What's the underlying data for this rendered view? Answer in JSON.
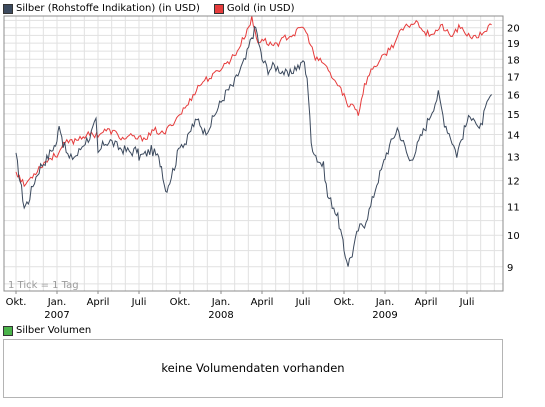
{
  "chart_data": {
    "type": "line",
    "x_ticks": [
      "Okt.",
      "Jan.",
      "April",
      "Juli",
      "Okt.",
      "Jan.",
      "April",
      "Juli",
      "Okt.",
      "Jan.",
      "April",
      "Juli"
    ],
    "year_labels": [
      {
        "label": "2007",
        "tick": 1
      },
      {
        "label": "2008",
        "tick": 5
      },
      {
        "label": "2009",
        "tick": 9
      }
    ],
    "y_ticks": [
      9,
      10,
      11,
      12,
      13,
      14,
      15,
      16,
      17,
      18,
      19,
      20
    ],
    "y_scale": "log",
    "ylim": [
      8.3,
      20.8
    ],
    "grid": true,
    "note": "1 Tick = 1 Tag",
    "series": [
      {
        "name": "Silber (Rohstoffe Indikation) (in USD)",
        "color": "#3c4a5e",
        "points": [
          [
            0,
            13.0
          ],
          [
            0.1,
            12.0
          ],
          [
            0.2,
            11.0
          ],
          [
            0.3,
            11.2
          ],
          [
            0.45,
            12.0
          ],
          [
            0.6,
            12.6
          ],
          [
            0.75,
            12.9
          ],
          [
            0.9,
            13.4
          ],
          [
            1.0,
            13.6
          ],
          [
            1.05,
            14.6
          ],
          [
            1.15,
            13.6
          ],
          [
            1.3,
            12.9
          ],
          [
            1.5,
            13.1
          ],
          [
            1.65,
            13.6
          ],
          [
            1.8,
            13.9
          ],
          [
            1.95,
            14.6
          ],
          [
            2.0,
            13.1
          ],
          [
            2.15,
            13.6
          ],
          [
            2.3,
            13.7
          ],
          [
            2.5,
            13.4
          ],
          [
            2.65,
            13.3
          ],
          [
            2.8,
            13.2
          ],
          [
            2.95,
            13.3
          ],
          [
            3.0,
            13.0
          ],
          [
            3.15,
            13.1
          ],
          [
            3.3,
            13.3
          ],
          [
            3.45,
            13.0
          ],
          [
            3.55,
            12.6
          ],
          [
            3.65,
            11.6
          ],
          [
            3.75,
            12.0
          ],
          [
            3.9,
            12.8
          ],
          [
            4.0,
            13.6
          ],
          [
            4.15,
            13.6
          ],
          [
            4.3,
            14.4
          ],
          [
            4.45,
            14.7
          ],
          [
            4.6,
            14.1
          ],
          [
            4.75,
            14.5
          ],
          [
            4.9,
            15.2
          ],
          [
            5.0,
            15.6
          ],
          [
            5.15,
            16.2
          ],
          [
            5.3,
            16.5
          ],
          [
            5.45,
            17.3
          ],
          [
            5.6,
            18.0
          ],
          [
            5.75,
            19.4
          ],
          [
            5.85,
            20.0
          ],
          [
            5.95,
            18.6
          ],
          [
            6.0,
            18.0
          ],
          [
            6.15,
            17.4
          ],
          [
            6.3,
            17.6
          ],
          [
            6.5,
            17.3
          ],
          [
            6.65,
            17.0
          ],
          [
            6.8,
            17.5
          ],
          [
            6.95,
            17.6
          ],
          [
            7.0,
            18.0
          ],
          [
            7.1,
            17.0
          ],
          [
            7.2,
            13.6
          ],
          [
            7.35,
            12.9
          ],
          [
            7.5,
            12.6
          ],
          [
            7.6,
            11.4
          ],
          [
            7.75,
            11.0
          ],
          [
            7.85,
            10.6
          ],
          [
            7.95,
            9.9
          ],
          [
            8.0,
            9.5
          ],
          [
            8.1,
            9.1
          ],
          [
            8.2,
            9.4
          ],
          [
            8.35,
            10.2
          ],
          [
            8.5,
            10.4
          ],
          [
            8.65,
            11.0
          ],
          [
            8.8,
            11.9
          ],
          [
            8.95,
            12.6
          ],
          [
            9.0,
            13.0
          ],
          [
            9.15,
            13.6
          ],
          [
            9.3,
            14.3
          ],
          [
            9.45,
            13.6
          ],
          [
            9.6,
            12.8
          ],
          [
            9.75,
            13.3
          ],
          [
            9.9,
            14.0
          ],
          [
            10.0,
            14.4
          ],
          [
            10.15,
            15.2
          ],
          [
            10.3,
            16.0
          ],
          [
            10.45,
            14.6
          ],
          [
            10.6,
            13.9
          ],
          [
            10.75,
            13.1
          ],
          [
            10.9,
            14.0
          ],
          [
            11.0,
            14.6
          ],
          [
            11.15,
            15.0
          ],
          [
            11.3,
            14.1
          ],
          [
            11.45,
            15.2
          ],
          [
            11.6,
            16.0
          ]
        ]
      },
      {
        "name": "Gold (in USD)",
        "color": "#e63c3c",
        "points": [
          [
            0,
            12.4
          ],
          [
            0.2,
            11.8
          ],
          [
            0.4,
            12.2
          ],
          [
            0.6,
            12.6
          ],
          [
            0.8,
            12.9
          ],
          [
            1.0,
            13.1
          ],
          [
            1.2,
            13.6
          ],
          [
            1.4,
            13.7
          ],
          [
            1.6,
            13.9
          ],
          [
            1.8,
            14.0
          ],
          [
            2.0,
            14.0
          ],
          [
            2.2,
            14.2
          ],
          [
            2.4,
            14.1
          ],
          [
            2.6,
            13.8
          ],
          [
            2.8,
            13.9
          ],
          [
            3.0,
            13.8
          ],
          [
            3.2,
            13.9
          ],
          [
            3.4,
            14.2
          ],
          [
            3.6,
            14.0
          ],
          [
            3.8,
            14.5
          ],
          [
            4.0,
            15.0
          ],
          [
            4.2,
            15.5
          ],
          [
            4.4,
            16.3
          ],
          [
            4.6,
            16.8
          ],
          [
            4.8,
            17.0
          ],
          [
            5.0,
            17.5
          ],
          [
            5.2,
            17.9
          ],
          [
            5.4,
            18.5
          ],
          [
            5.6,
            19.6
          ],
          [
            5.75,
            20.6
          ],
          [
            5.9,
            19.0
          ],
          [
            6.0,
            19.3
          ],
          [
            6.2,
            18.9
          ],
          [
            6.4,
            19.0
          ],
          [
            6.6,
            19.4
          ],
          [
            6.8,
            19.6
          ],
          [
            7.0,
            20.1
          ],
          [
            7.15,
            19.2
          ],
          [
            7.3,
            18.0
          ],
          [
            7.5,
            17.8
          ],
          [
            7.7,
            17.0
          ],
          [
            7.85,
            16.5
          ],
          [
            8.0,
            16.0
          ],
          [
            8.1,
            15.3
          ],
          [
            8.2,
            15.6
          ],
          [
            8.35,
            15.0
          ],
          [
            8.5,
            16.5
          ],
          [
            8.7,
            17.5
          ],
          [
            8.85,
            17.8
          ],
          [
            9.0,
            18.3
          ],
          [
            9.2,
            18.9
          ],
          [
            9.4,
            19.8
          ],
          [
            9.6,
            20.2
          ],
          [
            9.8,
            20.4
          ],
          [
            10.0,
            19.6
          ],
          [
            10.2,
            19.7
          ],
          [
            10.4,
            20.1
          ],
          [
            10.6,
            19.4
          ],
          [
            10.8,
            20.0
          ],
          [
            11.0,
            19.6
          ],
          [
            11.2,
            19.3
          ],
          [
            11.4,
            19.7
          ],
          [
            11.6,
            20.2
          ]
        ]
      }
    ],
    "volume_legend": "Silber Volumen",
    "volume_message": "keine Volumendaten vorhanden",
    "volume_color": "#4bb44b"
  }
}
